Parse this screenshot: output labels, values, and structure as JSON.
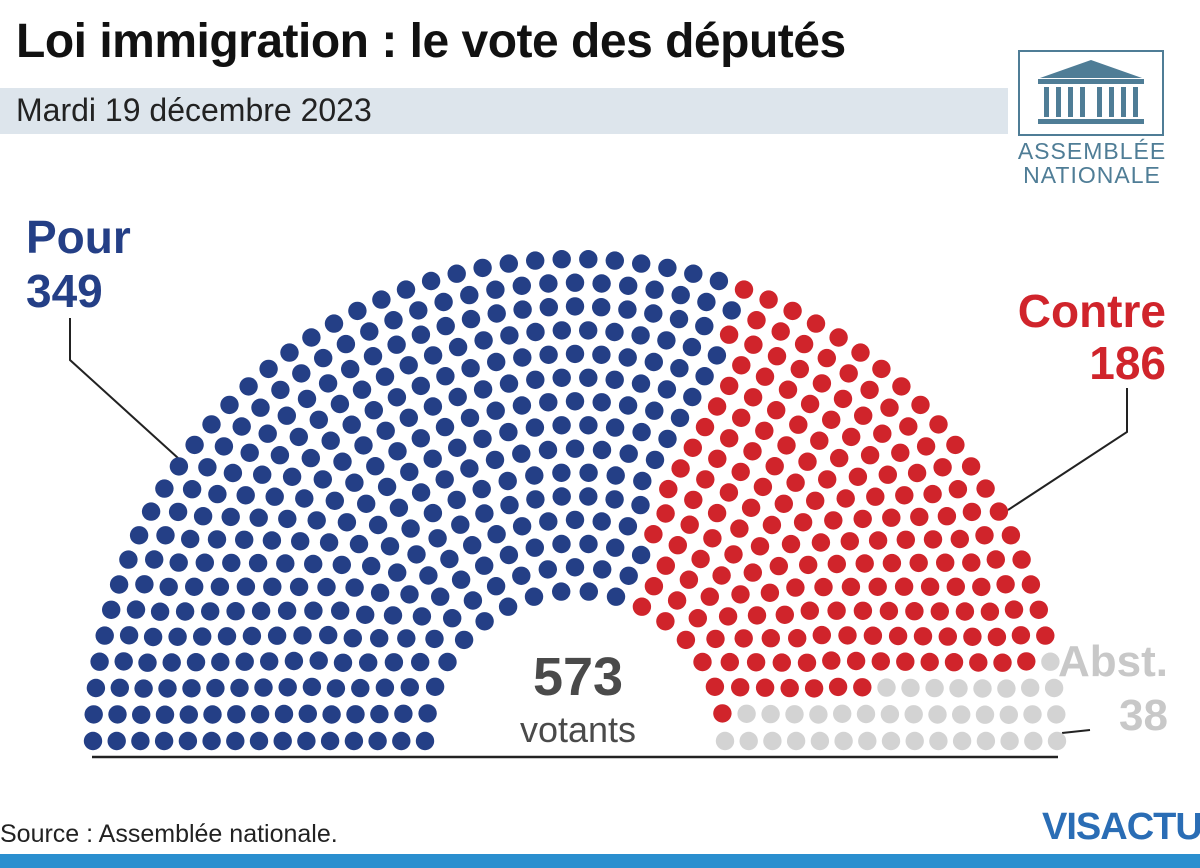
{
  "header": {
    "title": "Loi immigration : le vote des députés",
    "subtitle": "Mardi 19 décembre 2023"
  },
  "logo": {
    "line1": "ASSEMBLÉE",
    "line2": "NATIONALE",
    "icon": "assemblee-building-icon"
  },
  "chart_data": {
    "type": "hemicycle",
    "title": "Loi immigration : le vote des députés",
    "date": "Mardi 19 décembre 2023",
    "total_votants": 573,
    "total_label": "votants",
    "series": [
      {
        "name": "Pour",
        "value": 349,
        "color": "#243f86"
      },
      {
        "name": "Contre",
        "value": 186,
        "color": "#d0242b"
      },
      {
        "name": "Abst.",
        "value": 38,
        "color": "#d3d3d3"
      }
    ]
  },
  "labels": {
    "pour": {
      "label": "Pour",
      "value": "349"
    },
    "contre": {
      "label": "Contre",
      "value": "186"
    },
    "abst": {
      "label": "Abst.",
      "value": "38"
    },
    "total": {
      "value": "573",
      "label": "votants"
    }
  },
  "footer": {
    "source": "Source : Assemblée nationale.",
    "brand": "VISACTU",
    "brand_color": "#2a6db5",
    "bar_color": "#2a8fcf"
  }
}
